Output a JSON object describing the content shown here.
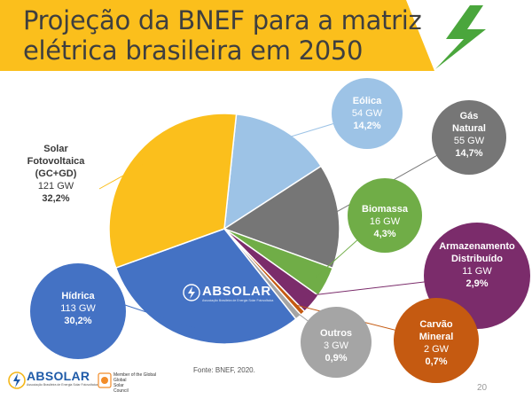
{
  "slide": {
    "title_line1": "Projeção da BNEF para a matriz",
    "title_line2": "elétrica brasileira em 2050",
    "source": "Fonte: BNEF, 2020.",
    "page_number": "20",
    "logo_text": "ABSOLAR",
    "logo_subtitle": "Associação Brasileira de Energia Solar Fotovoltaica",
    "council_line1": "Global",
    "council_line2": "Solar",
    "council_line3": "Council",
    "council_member": "Member of the Global",
    "accent_color": "#fbbf1c",
    "bolt_color": "#4aa63c"
  },
  "chart_data": {
    "type": "pie",
    "title": "",
    "unit": "GW",
    "slices": [
      {
        "label": [
          "Eólica"
        ],
        "gw": 54,
        "value": 14.2,
        "gw_text": "54 GW",
        "pct_text": "14,2%",
        "color": "#9dc3e6"
      },
      {
        "label": [
          "Gás",
          "Natural"
        ],
        "gw": 55,
        "value": 14.7,
        "gw_text": "55 GW",
        "pct_text": "14,7%",
        "color": "#767676"
      },
      {
        "label": [
          "Biomassa"
        ],
        "gw": 16,
        "value": 4.3,
        "gw_text": "16 GW",
        "pct_text": "4,3%",
        "color": "#70ad47"
      },
      {
        "label": [
          "Armazenamento",
          "Distribuído"
        ],
        "gw": 11,
        "value": 2.9,
        "gw_text": "11 GW",
        "pct_text": "2,9%",
        "color": "#7b2c6b"
      },
      {
        "label": [
          "Carvão",
          "Mineral"
        ],
        "gw": 2,
        "value": 0.7,
        "gw_text": "2 GW",
        "pct_text": "0,7%",
        "color": "#c55a11"
      },
      {
        "label": [
          "Outros"
        ],
        "gw": 3,
        "value": 0.9,
        "gw_text": "3 GW",
        "pct_text": "0,9%",
        "color": "#a5a5a5"
      },
      {
        "label": [
          "Hídrica"
        ],
        "gw": 113,
        "value": 30.2,
        "gw_text": "113 GW",
        "pct_text": "30,2%",
        "color": "#4472c4"
      },
      {
        "label": [
          "Solar",
          "Fotovoltaica",
          "(GC+GD)"
        ],
        "gw": 121,
        "value": 32.2,
        "gw_text": "121 GW",
        "pct_text": "32,2%",
        "color": "#fbbf1c"
      }
    ]
  }
}
